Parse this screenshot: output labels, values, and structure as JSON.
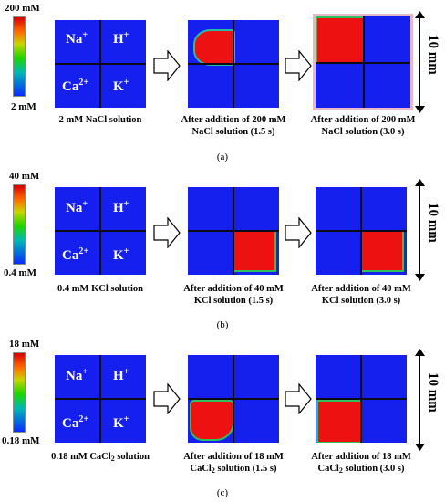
{
  "colors": {
    "low": "#0a2cff",
    "high": "#d40000",
    "panel_bg": "#1520ee",
    "high_region": "#ee1111"
  },
  "ions": {
    "na": "Na",
    "na_charge": "+",
    "h": "H",
    "h_charge": "+",
    "ca": "Ca",
    "ca_charge": "2+",
    "k": "K",
    "k_charge": "+"
  },
  "scale": {
    "label": "10 mm"
  },
  "rows": [
    {
      "colorbar": {
        "max": "200 mM",
        "min": "2 mM"
      },
      "captions": {
        "p1": "2 mM NaCl solution",
        "p2a": "After addition of 200 mM",
        "p2b": "NaCl solution (1.5 s)",
        "p3a": "After addition of 200 mM",
        "p3b": "NaCl solution (3.0 s)"
      },
      "sublabel": "(a)"
    },
    {
      "colorbar": {
        "max": "40 mM",
        "min": "0.4 mM"
      },
      "captions": {
        "p1": "0.4 mM KCl solution",
        "p2a": "After addition of 40 mM",
        "p2b": "KCl solution (1.5 s)",
        "p3a": "After addition of 40 mM",
        "p3b": "KCl solution (3.0 s)"
      },
      "sublabel": "(b)"
    },
    {
      "colorbar": {
        "max": "18 mM",
        "min": "0.18 mM"
      },
      "captions": {
        "p1a": "0.18 mM CaCl",
        "p1sub": "2",
        "p1b": " solution",
        "p2a": "After addition of 18 mM",
        "p2b1": "CaCl",
        "p2sub": "2",
        "p2b2": " solution (1.5 s)",
        "p3a": "After addition of 18 mM",
        "p3b1": "CaCl",
        "p3sub": "2",
        "p3b2": " solution (3.0 s)"
      },
      "sublabel": "(c)"
    }
  ]
}
